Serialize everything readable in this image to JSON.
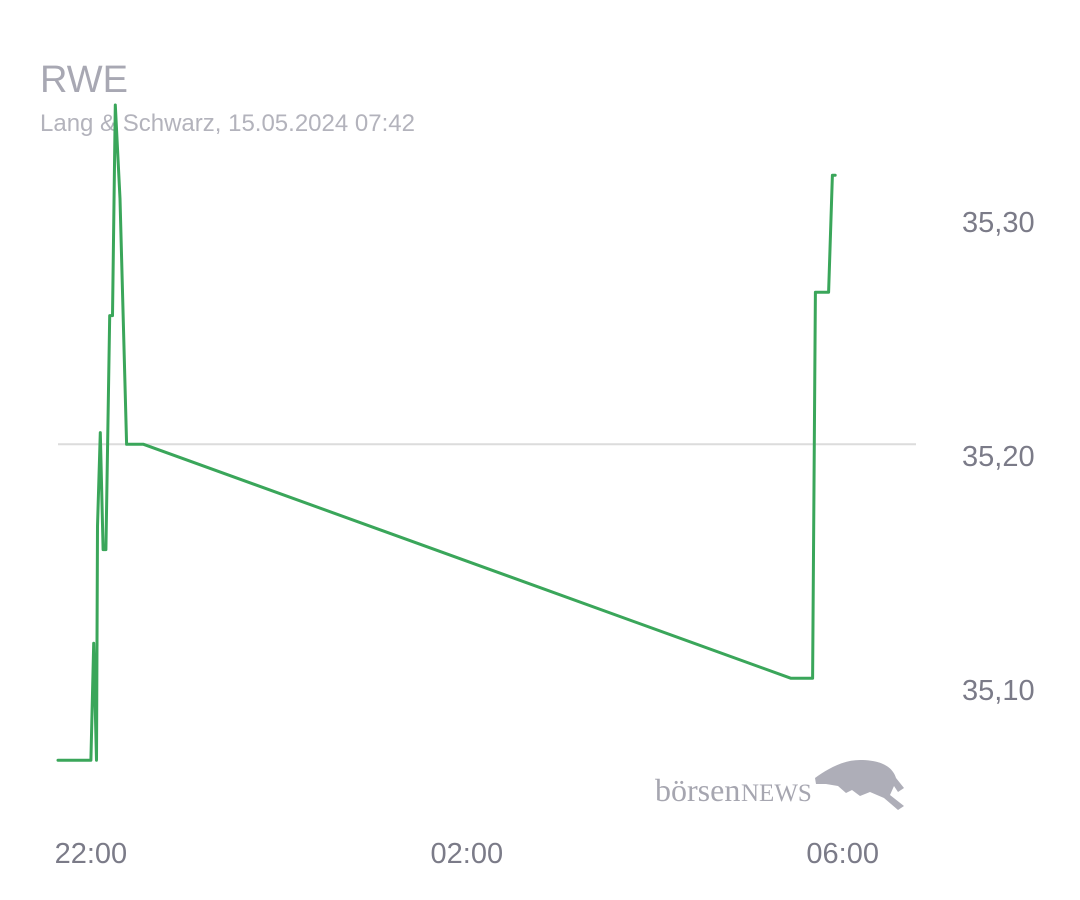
{
  "chart_data": {
    "type": "line",
    "title": "RWE",
    "subtitle": "Lang & Schwarz, 15.05.2024 07:42",
    "xlabel": "",
    "ylabel": "",
    "x_ticks": [
      "22:00",
      "02:00",
      "06:00"
    ],
    "y_ticks": [
      "35,10",
      "35,20",
      "35,30"
    ],
    "y_tick_values": [
      35.1,
      35.2,
      35.3
    ],
    "ylim": [
      35.02,
      35.36
    ],
    "xlim_hours": [
      21.65,
      30.78
    ],
    "reference_line": 35.205,
    "series": [
      {
        "color": "#3aa65a",
        "points": [
          [
            21.65,
            35.07
          ],
          [
            22.0,
            35.07
          ],
          [
            22.03,
            35.12
          ],
          [
            22.06,
            35.07
          ],
          [
            22.07,
            35.17
          ],
          [
            22.1,
            35.21
          ],
          [
            22.13,
            35.16
          ],
          [
            22.16,
            35.16
          ],
          [
            22.2,
            35.26
          ],
          [
            22.23,
            35.26
          ],
          [
            22.26,
            35.35
          ],
          [
            22.31,
            35.31
          ],
          [
            22.38,
            35.205
          ],
          [
            22.56,
            35.205
          ],
          [
            29.45,
            35.105
          ],
          [
            29.68,
            35.105
          ],
          [
            29.71,
            35.27
          ],
          [
            29.85,
            35.27
          ],
          [
            29.89,
            35.32
          ],
          [
            29.92,
            35.32
          ]
        ]
      }
    ],
    "watermark": {
      "lower": "börsen",
      "upper": "NEWS"
    },
    "grid": false
  }
}
